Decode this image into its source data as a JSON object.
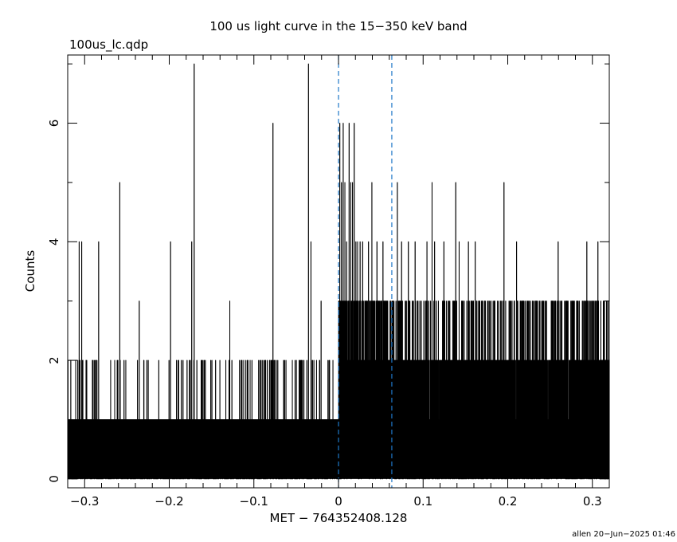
{
  "chart_data": {
    "type": "histogram",
    "title": "100 us light curve in the 15−350 keV band",
    "file_label": "100us_lc.qdp",
    "xlabel": "MET − 764352408.128",
    "ylabel": "Counts",
    "footer": "allen 20−Jun−2025 01:46",
    "xlim": [
      -0.32,
      0.32
    ],
    "ylim": [
      -0.15,
      7.15
    ],
    "bin_width": 0.0001,
    "x_ticks": [
      -0.3,
      -0.2,
      -0.1,
      0,
      0.1,
      0.2,
      0.3
    ],
    "x_tick_labels": [
      "−0.3",
      "−0.2",
      "−0.1",
      "0",
      "0.1",
      "0.2",
      "0.3"
    ],
    "y_ticks": [
      0,
      2,
      4,
      6
    ],
    "y_tick_labels": [
      "0",
      "2",
      "4",
      "6"
    ],
    "vlines": [
      0.0,
      0.063
    ],
    "vline_color": "#1f77c8",
    "series": [
      {
        "peaks": [
          [
            -0.3065,
            4
          ],
          [
            -0.3035,
            4
          ],
          [
            -0.2835,
            4
          ],
          [
            -0.2585,
            5
          ],
          [
            -0.2355,
            3
          ],
          [
            -0.1985,
            4
          ],
          [
            -0.1705,
            7
          ],
          [
            -0.1735,
            4
          ],
          [
            -0.1285,
            3
          ],
          [
            -0.0775,
            6
          ],
          [
            -0.0355,
            7
          ],
          [
            -0.0205,
            3
          ],
          [
            -0.0325,
            4
          ],
          [
            0.0015,
            6
          ],
          [
            0.0035,
            5
          ],
          [
            0.0055,
            6
          ],
          [
            0.0075,
            5
          ],
          [
            0.0095,
            4
          ],
          [
            0.0125,
            6
          ],
          [
            0.0145,
            5
          ],
          [
            0.0165,
            5
          ],
          [
            0.0185,
            6
          ],
          [
            0.0205,
            4
          ],
          [
            0.0225,
            4
          ],
          [
            0.0255,
            4
          ],
          [
            0.0285,
            4
          ],
          [
            0.0315,
            3
          ],
          [
            0.0355,
            4
          ],
          [
            0.0395,
            5
          ],
          [
            0.0425,
            3
          ],
          [
            0.0455,
            4
          ],
          [
            0.0525,
            4
          ],
          [
            0.0545,
            3
          ],
          [
            0.0615,
            3
          ],
          [
            0.0655,
            3
          ],
          [
            0.0695,
            5
          ],
          [
            0.0745,
            4
          ],
          [
            0.0825,
            4
          ],
          [
            0.0875,
            3
          ],
          [
            0.0905,
            4
          ],
          [
            0.1045,
            4
          ],
          [
            0.1105,
            5
          ],
          [
            0.1135,
            4
          ],
          [
            0.1245,
            4
          ],
          [
            0.1315,
            3
          ],
          [
            0.1385,
            5
          ],
          [
            0.1425,
            4
          ],
          [
            0.1455,
            3
          ],
          [
            0.1535,
            4
          ],
          [
            0.1565,
            3
          ],
          [
            0.1615,
            4
          ],
          [
            0.1725,
            3
          ],
          [
            0.1915,
            3
          ],
          [
            0.1955,
            5
          ],
          [
            0.2015,
            3
          ],
          [
            0.2105,
            4
          ],
          [
            0.2185,
            3
          ],
          [
            0.2325,
            3
          ],
          [
            0.2445,
            3
          ],
          [
            0.2595,
            4
          ],
          [
            0.2745,
            3
          ],
          [
            0.2935,
            4
          ],
          [
            0.3035,
            3
          ],
          [
            0.3065,
            4
          ]
        ]
      }
    ]
  }
}
